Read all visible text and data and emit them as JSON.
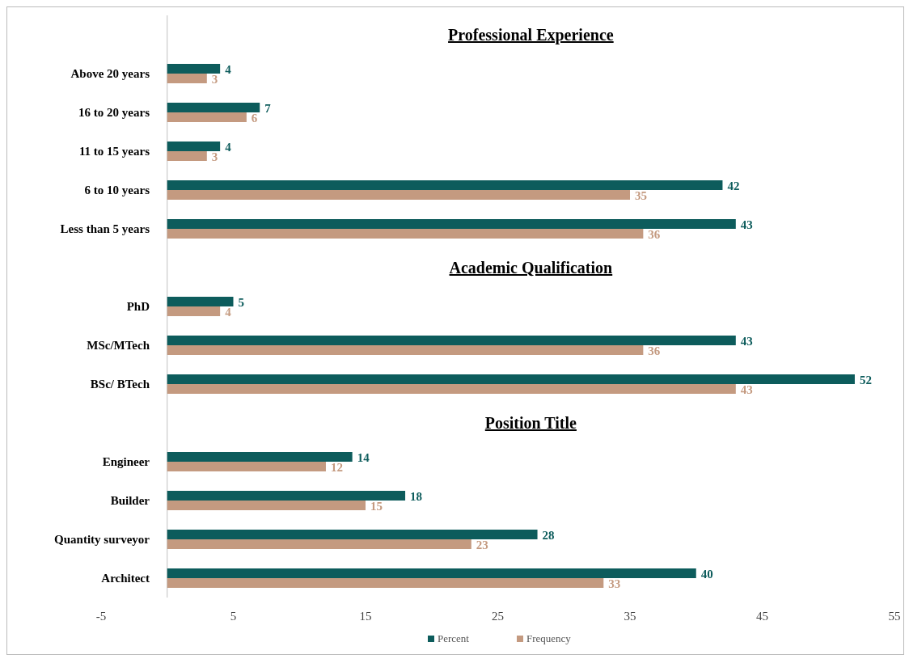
{
  "chart_data": {
    "type": "bar",
    "orientation": "horizontal",
    "categories": [
      null,
      "Above 20 years",
      "16 to 20 years",
      "11 to 15 years",
      "6 to 10 years",
      "Less than 5 years",
      null,
      "PhD",
      "MSc/MTech",
      "BSc/ BTech",
      null,
      "Engineer",
      "Builder",
      "Quantity surveyor",
      "Architect"
    ],
    "series": [
      {
        "name": "Percent",
        "color": "#0d5c5c",
        "values": [
          null,
          4,
          7,
          4,
          42,
          43,
          null,
          5,
          43,
          52,
          null,
          14,
          18,
          28,
          40
        ]
      },
      {
        "name": "Frequency",
        "color": "#c49a80",
        "values": [
          null,
          3,
          6,
          3,
          35,
          36,
          null,
          4,
          36,
          43,
          null,
          12,
          15,
          23,
          33
        ]
      }
    ],
    "annotations": [
      "Professional Experience",
      "Academic Qualification",
      "Position Title"
    ],
    "xlim": [
      -5,
      55
    ],
    "xticks": [
      -5,
      5,
      15,
      25,
      35,
      45,
      55
    ],
    "data_labels": true,
    "grid": false,
    "legend": "bottom"
  }
}
